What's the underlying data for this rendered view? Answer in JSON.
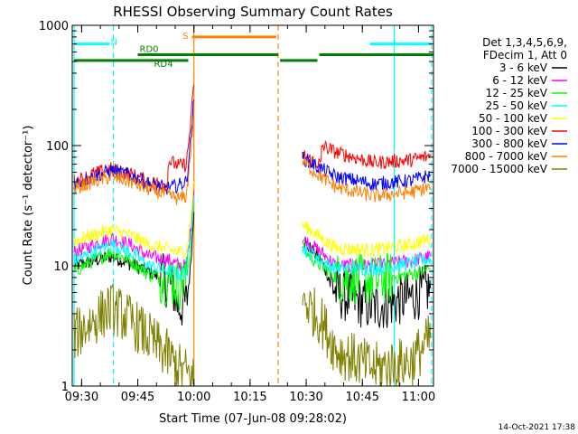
{
  "chart_data": {
    "type": "line",
    "title": "RHESSI Observing Summary Count Rates",
    "xlabel": "Start Time (07-Jun-08 09:28:02)",
    "ylabel": "Count Rate (s⁻¹ detector⁻¹)",
    "yscale": "log",
    "ylim": [
      1,
      1000
    ],
    "xlim_minutes_after_0928": [
      -0.5,
      96
    ],
    "x_ticks": [
      {
        "label": "09:30",
        "minutes": 2
      },
      {
        "label": "09:45",
        "minutes": 17
      },
      {
        "label": "10:00",
        "minutes": 32
      },
      {
        "label": "10:15",
        "minutes": 47
      },
      {
        "label": "10:30",
        "minutes": 62
      },
      {
        "label": "10:45",
        "minutes": 77
      },
      {
        "label": "11:00",
        "minutes": 92
      }
    ],
    "y_ticks": [
      {
        "label": "1",
        "value": 1
      },
      {
        "label": "10",
        "value": 10
      },
      {
        "label": "100",
        "value": 100
      },
      {
        "label": "1000",
        "value": 1000
      }
    ],
    "legend_header": [
      "Det 1,3,4,5,6,9,",
      "FDecim 1, Att 0"
    ],
    "legend_position": "right",
    "series": [
      {
        "name": "3 - 6 keV",
        "color": "#000000",
        "x": [
          0,
          10,
          20,
          26,
          28,
          30,
          31,
          32,
          45,
          61,
          63,
          66,
          70,
          80,
          90,
          95.2
        ],
        "values": [
          10,
          12,
          9,
          7,
          4.5,
          5,
          9,
          28,
          null,
          16,
          14,
          11,
          6,
          4.5,
          5.5,
          6.5
        ]
      },
      {
        "name": "6 - 12 keV",
        "color": "#ff00ff",
        "x": [
          0,
          5,
          10,
          15,
          20,
          26,
          28,
          30,
          31,
          32,
          45,
          61,
          63,
          66,
          70,
          80,
          90,
          95.2
        ],
        "values": [
          13,
          15,
          17,
          15,
          12,
          11,
          10,
          10,
          18,
          42,
          null,
          17,
          15,
          13,
          10,
          10,
          11,
          12
        ]
      },
      {
        "name": "12 - 25 keV",
        "color": "#00ff00",
        "x": [
          0,
          5,
          10,
          15,
          20,
          26,
          28,
          30,
          31,
          32,
          45,
          61,
          63,
          66,
          70,
          80,
          90,
          95.2
        ],
        "values": [
          9,
          11,
          13,
          11,
          8.5,
          7.5,
          7,
          7.5,
          14,
          35,
          null,
          14,
          12,
          10,
          8,
          7.5,
          8.5,
          9.5
        ]
      },
      {
        "name": "25 - 50 keV",
        "color": "#00ffff",
        "x": [
          0,
          5,
          10,
          15,
          20,
          26,
          28,
          30,
          31,
          32,
          45,
          61,
          63,
          66,
          70,
          80,
          90,
          95.2
        ],
        "values": [
          11,
          13,
          15,
          13,
          10,
          9,
          8.5,
          9,
          16,
          38,
          null,
          14,
          13,
          11,
          9.5,
          9.5,
          10.5,
          11.5
        ]
      },
      {
        "name": "50 - 100 keV",
        "color": "#ffff00",
        "x": [
          0,
          5,
          10,
          15,
          20,
          26,
          28,
          30,
          31,
          32,
          45,
          61,
          63,
          66,
          70,
          80,
          90,
          95.2
        ],
        "values": [
          16,
          18,
          20,
          18,
          15,
          13.5,
          13,
          13.5,
          22,
          50,
          null,
          22,
          20,
          17,
          14,
          13.5,
          15,
          17
        ]
      },
      {
        "name": "100 - 300 keV",
        "color": "#ff0000",
        "x": [
          0,
          5,
          10,
          15,
          20,
          25,
          25.1,
          28,
          30,
          31,
          32,
          45,
          61,
          63,
          66,
          66.1,
          70,
          80,
          90,
          95.2
        ],
        "values": [
          50,
          58,
          64,
          58,
          50,
          47,
          75,
          68,
          70,
          140,
          320,
          null,
          85,
          76,
          70,
          100,
          88,
          72,
          76,
          82
        ]
      },
      {
        "name": "300 - 800 keV",
        "color": "#0000ff",
        "x": [
          0,
          5,
          10,
          15,
          20,
          25,
          28,
          30,
          31,
          32,
          45,
          61,
          63,
          66,
          70,
          80,
          90,
          95.2
        ],
        "values": [
          48,
          55,
          62,
          57,
          48,
          44,
          47,
          50,
          100,
          240,
          null,
          80,
          72,
          64,
          55,
          48,
          51,
          57
        ]
      },
      {
        "name": "800 - 7000 keV",
        "color": "#ff8000",
        "x": [
          0,
          5,
          10,
          15,
          20,
          25,
          28,
          30,
          31,
          32,
          45,
          61,
          63,
          66,
          70,
          80,
          90,
          95.2
        ],
        "values": [
          44,
          50,
          55,
          50,
          43,
          39,
          36,
          38,
          80,
          180,
          null,
          75,
          65,
          55,
          45,
          38,
          41,
          45
        ]
      },
      {
        "name": "7000 - 15000 keV",
        "color": "#808000",
        "x": [
          0,
          5,
          10,
          15,
          20,
          25,
          28,
          30,
          31,
          32,
          45,
          61,
          63,
          66,
          70,
          80,
          90,
          95.2
        ],
        "values": [
          2.6,
          3.5,
          4.5,
          3.5,
          2.5,
          1.8,
          1.4,
          1.3,
          1.2,
          1.1,
          null,
          5.5,
          4.5,
          3.5,
          2.0,
          1.4,
          1.6,
          2.5
        ]
      }
    ],
    "state_bars": [
      {
        "label": "N",
        "color": "#00ffff",
        "level": 700,
        "segments": [
          [
            0,
            9.5
          ],
          [
            79,
            95.5
          ]
        ]
      },
      {
        "label": "S",
        "color": "#ff8000",
        "level": 800,
        "segments": [
          [
            31.5,
            54
          ]
        ]
      },
      {
        "label": "RD0",
        "color": "#008000",
        "level": 570,
        "segments": [
          [
            17,
            54.5
          ],
          [
            65.5,
            96
          ]
        ]
      },
      {
        "label": "RD4",
        "color": "#008000",
        "level": 510,
        "segments": [
          [
            0,
            30.5
          ],
          [
            55,
            65
          ]
        ]
      }
    ],
    "vertical_markers": [
      {
        "color": "#00ffff",
        "minutes": 0,
        "style": "solid"
      },
      {
        "color": "#00ffff",
        "minutes": 10.5,
        "style": "dashed"
      },
      {
        "color": "#ff8000",
        "minutes": 32,
        "style": "solid"
      },
      {
        "color": "#ff8000",
        "minutes": 54.5,
        "style": "dashed"
      },
      {
        "color": "#00ffff",
        "minutes": 85.5,
        "style": "solid"
      },
      {
        "color": "#00ffff",
        "minutes": 95.5,
        "style": "dashed"
      }
    ],
    "footer": "14-Oct-2021 17:38"
  }
}
